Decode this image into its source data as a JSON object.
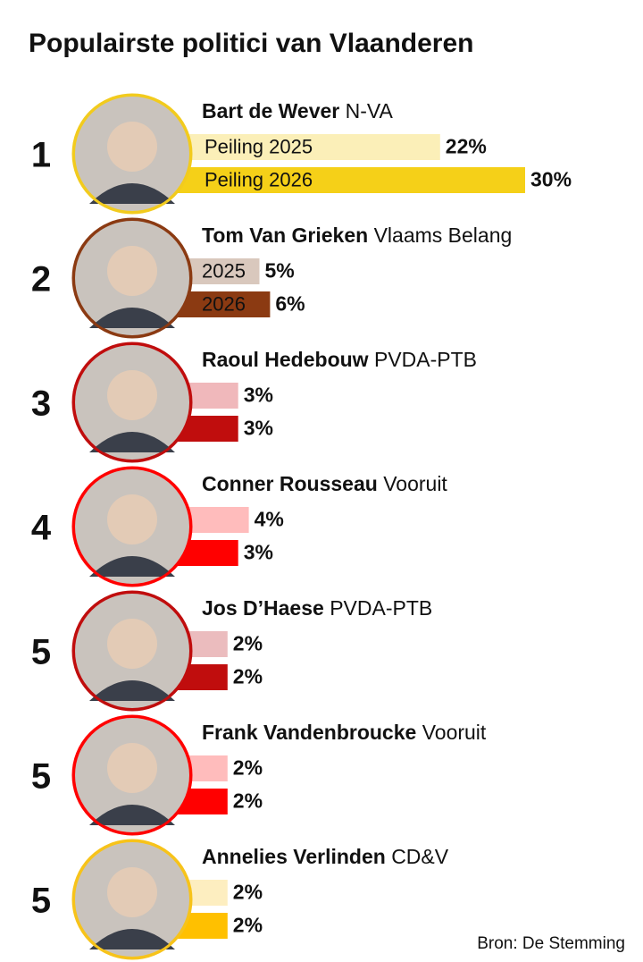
{
  "chart_data": {
    "type": "bar",
    "orientation": "horizontal",
    "title": "Populairste politici van Vlaanderen",
    "source": "Bron: De Stemming",
    "ranks": [
      1,
      2,
      3,
      4,
      5,
      5,
      5
    ],
    "categories": [
      "Bart de Wever",
      "Tom Van Grieken",
      "Raoul Hedebouw",
      "Conner Rousseau",
      "Jos D’Haese",
      "Frank Vandenbroucke",
      "Annelies Verlinden"
    ],
    "parties": [
      "N-VA",
      "Vlaams Belang",
      "PVDA-PTB",
      "Vooruit",
      "PVDA-PTB",
      "Vooruit",
      "CD&V"
    ],
    "ring_colors": [
      "#f2cb1d",
      "#8b3a12",
      "#c00d0d",
      "#ff0000",
      "#c00d0d",
      "#ff0000",
      "#f7c31a"
    ],
    "series": [
      {
        "name": "Peiling 2025",
        "short_name": "2025",
        "values": [
          22,
          5,
          3,
          4,
          2,
          2,
          2
        ],
        "value_labels": [
          "22%",
          "5%",
          "3%",
          "4%",
          "2%",
          "2%",
          "2%"
        ],
        "colors": [
          "#fbefb8",
          "#d9c8bd",
          "#f0b8bb",
          "#ffbcbc",
          "#ebbcbe",
          "#ffbcbc",
          "#fdeec0"
        ]
      },
      {
        "name": "Peiling 2026",
        "short_name": "2026",
        "values": [
          30,
          6,
          3,
          3,
          2,
          2,
          2
        ],
        "value_labels": [
          "30%",
          "6%",
          "3%",
          "3%",
          "2%",
          "2%",
          "2%"
        ],
        "colors": [
          "#f5d018",
          "#8b3a12",
          "#c00d0d",
          "#ff0000",
          "#c00d0d",
          "#ff0000",
          "#ffc000"
        ]
      }
    ]
  }
}
